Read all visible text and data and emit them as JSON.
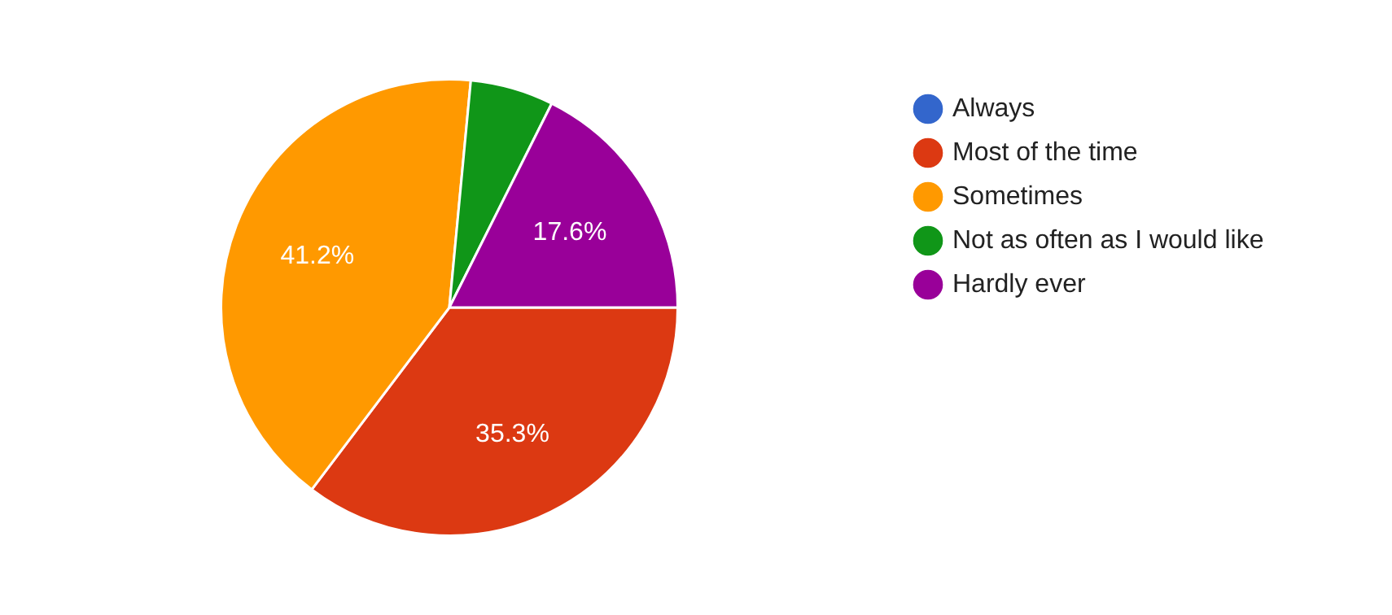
{
  "chart_data": {
    "type": "pie",
    "categories": [
      "Always",
      "Most of the time",
      "Sometimes",
      "Not as often as I would like",
      "Hardly ever"
    ],
    "values": [
      0,
      35.3,
      41.2,
      5.9,
      17.6
    ],
    "colors": [
      "#3366cc",
      "#dc3912",
      "#ff9900",
      "#109618",
      "#990099"
    ],
    "value_labels": [
      null,
      "35.3%",
      "41.2%",
      null,
      "17.6%"
    ],
    "legend": "right"
  }
}
